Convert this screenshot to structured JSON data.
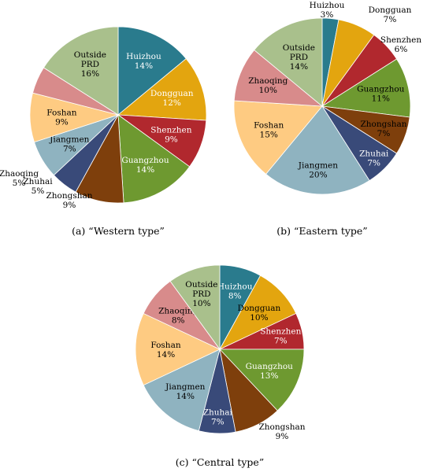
{
  "chart_data": [
    {
      "type": "pie",
      "caption": "(a) “Western type”",
      "slices": [
        {
          "name": "Huizhou",
          "value": 14,
          "text": "14%",
          "color": "#2a7b8d",
          "label_color": "#ffffff",
          "outside": false
        },
        {
          "name": "Dongguan",
          "value": 12,
          "text": "12%",
          "color": "#e3a50f",
          "label_color": "#ffffff",
          "outside": false
        },
        {
          "name": "Shenzhen",
          "value": 9,
          "text": "9%",
          "color": "#b1282e",
          "label_color": "#ffffff",
          "outside": false
        },
        {
          "name": "Guangzhou",
          "value": 14,
          "text": "14%",
          "color": "#6e9930",
          "label_color": "#ffffff",
          "outside": false
        },
        {
          "name": "Zhongshan",
          "value": 9,
          "text": "9%",
          "color": "#7e3f0c",
          "label_color": "#000000",
          "outside": true
        },
        {
          "name": "Zhuhai",
          "value": 5,
          "text": "5%",
          "color": "#394a79",
          "label_color": "#000000",
          "outside": true
        },
        {
          "name": "Jiangmen",
          "value": 7,
          "text": "7%",
          "color": "#8fb3c0",
          "label_color": "#000000",
          "outside": false
        },
        {
          "name": "Foshan",
          "value": 9,
          "text": "9%",
          "color": "#fecb82",
          "label_color": "#000000",
          "outside": false
        },
        {
          "name": "Zhaoqing",
          "value": 5,
          "text": "5%",
          "color": "#d88b8b",
          "label_color": "#000000",
          "outside": true
        },
        {
          "name": "Outside PRD",
          "value": 16,
          "text": "16%",
          "color": "#a9c08c",
          "label_color": "#000000",
          "outside": false
        }
      ]
    },
    {
      "type": "pie",
      "caption": "(b) “Eastern type”",
      "slices": [
        {
          "name": "Huizhou",
          "value": 3,
          "text": "3%",
          "color": "#2a7b8d",
          "label_color": "#000000",
          "outside": true
        },
        {
          "name": "Dongguan",
          "value": 7,
          "text": "7%",
          "color": "#e3a50f",
          "label_color": "#000000",
          "outside": true
        },
        {
          "name": "Shenzhen",
          "value": 6,
          "text": "6%",
          "color": "#b1282e",
          "label_color": "#000000",
          "outside": true
        },
        {
          "name": "Guangzhou",
          "value": 11,
          "text": "11%",
          "color": "#6e9930",
          "label_color": "#000000",
          "outside": false
        },
        {
          "name": "Zhongshan",
          "value": 7,
          "text": "7%",
          "color": "#7e3f0c",
          "label_color": "#000000",
          "outside": false
        },
        {
          "name": "Zhuhai",
          "value": 7,
          "text": "7%",
          "color": "#394a79",
          "label_color": "#ffffff",
          "outside": false
        },
        {
          "name": "Jiangmen",
          "value": 20,
          "text": "20%",
          "color": "#8fb3c0",
          "label_color": "#000000",
          "outside": false
        },
        {
          "name": "Foshan",
          "value": 15,
          "text": "15%",
          "color": "#fecb82",
          "label_color": "#000000",
          "outside": false
        },
        {
          "name": "Zhaoqing",
          "value": 10,
          "text": "10%",
          "color": "#d88b8b",
          "label_color": "#000000",
          "outside": false
        },
        {
          "name": "Outside PRD",
          "value": 14,
          "text": "14%",
          "color": "#a9c08c",
          "label_color": "#000000",
          "outside": false
        }
      ]
    },
    {
      "type": "pie",
      "caption": "(c) “Central type”",
      "slices": [
        {
          "name": "Huizhou",
          "value": 8,
          "text": "8%",
          "color": "#2a7b8d",
          "label_color": "#ffffff",
          "outside": false
        },
        {
          "name": "Dongguan",
          "value": 10,
          "text": "10%",
          "color": "#e3a50f",
          "label_color": "#000000",
          "outside": false
        },
        {
          "name": "Shenzhen",
          "value": 7,
          "text": "7%",
          "color": "#b1282e",
          "label_color": "#ffffff",
          "outside": false
        },
        {
          "name": "Guangzhou",
          "value": 13,
          "text": "13%",
          "color": "#6e9930",
          "label_color": "#ffffff",
          "outside": false
        },
        {
          "name": "Zhongshan",
          "value": 9,
          "text": "9%",
          "color": "#7e3f0c",
          "label_color": "#000000",
          "outside": true
        },
        {
          "name": "Zhuhai",
          "value": 7,
          "text": "7%",
          "color": "#394a79",
          "label_color": "#ffffff",
          "outside": false
        },
        {
          "name": "Jiangmen",
          "value": 14,
          "text": "14%",
          "color": "#8fb3c0",
          "label_color": "#000000",
          "outside": false
        },
        {
          "name": "Foshan",
          "value": 14,
          "text": "14%",
          "color": "#fecb82",
          "label_color": "#000000",
          "outside": false
        },
        {
          "name": "Zhaoqing",
          "value": 8,
          "text": "8%",
          "color": "#d88b8b",
          "label_color": "#000000",
          "outside": false
        },
        {
          "name": "Outside PRD",
          "value": 10,
          "text": "10%",
          "color": "#a9c08c",
          "label_color": "#000000",
          "outside": false
        }
      ]
    }
  ]
}
